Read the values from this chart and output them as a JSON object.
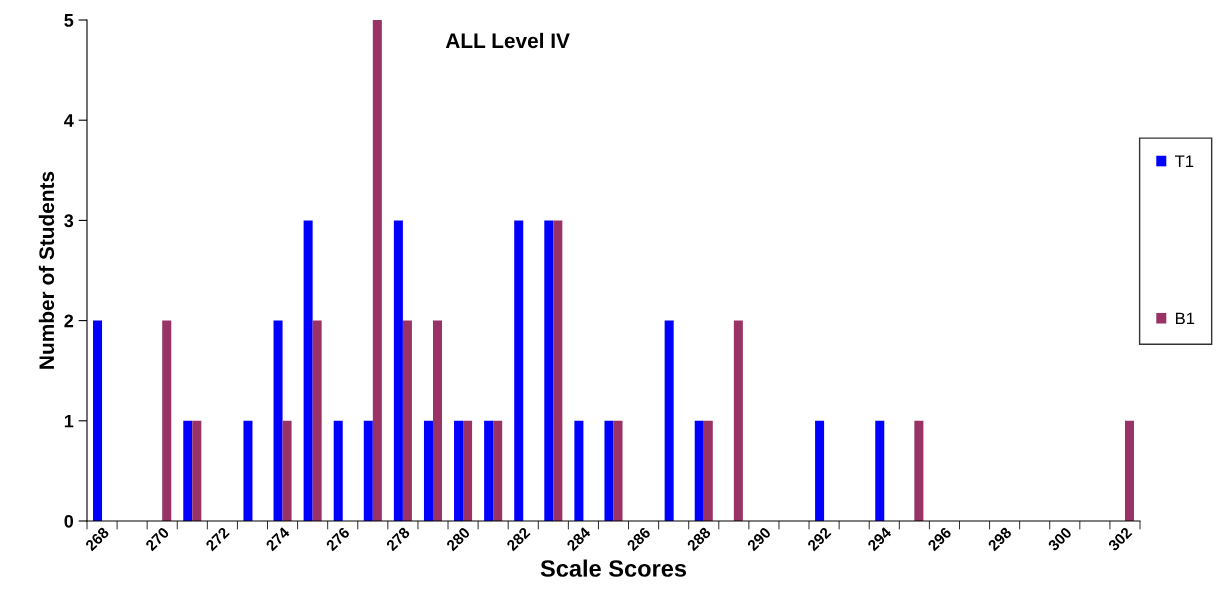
{
  "chart_data": {
    "type": "bar",
    "title": "ALL Level IV",
    "xlabel": "Scale Scores",
    "ylabel": "Number of Students",
    "categories": [
      "268",
      null,
      "270",
      null,
      "272",
      null,
      "274",
      null,
      "276",
      null,
      "278",
      null,
      "280",
      null,
      "282",
      null,
      "284",
      null,
      "286",
      null,
      "288",
      null,
      "290",
      null,
      "292",
      null,
      "294",
      null,
      "296",
      null,
      "298",
      null,
      "300",
      null,
      "302"
    ],
    "series": [
      {
        "name": "T1",
        "color": "#0000ff",
        "values": [
          2,
          0,
          0,
          1,
          0,
          1,
          2,
          3,
          1,
          1,
          3,
          1,
          1,
          1,
          3,
          3,
          1,
          1,
          0,
          2,
          1,
          0,
          0,
          0,
          1,
          0,
          1,
          0,
          0,
          0,
          0,
          0,
          0,
          0,
          0
        ]
      },
      {
        "name": "B1",
        "color": "#993366",
        "values": [
          0,
          0,
          2,
          1,
          0,
          0,
          1,
          2,
          0,
          5,
          2,
          2,
          1,
          1,
          0,
          3,
          0,
          1,
          0,
          0,
          1,
          2,
          0,
          0,
          0,
          0,
          0,
          1,
          0,
          0,
          0,
          0,
          0,
          0,
          1
        ]
      }
    ],
    "ylim": [
      0,
      5
    ],
    "yticks": [
      0,
      1,
      2,
      3,
      4,
      5
    ],
    "grid": false,
    "legend": "right"
  }
}
